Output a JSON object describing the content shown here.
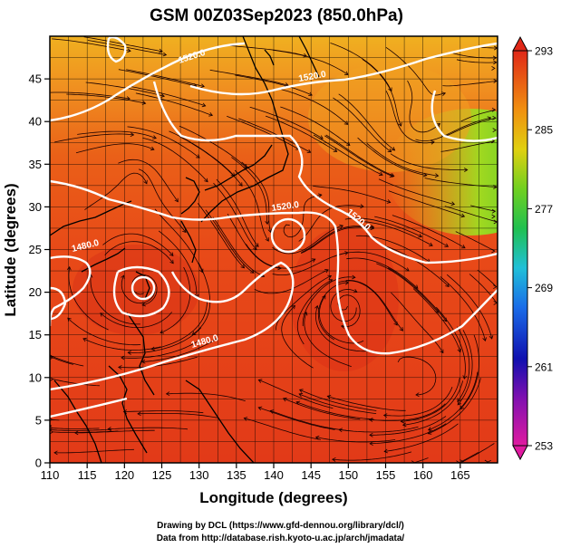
{
  "title": "GSM 00Z03Sep2023 (850.0hPa)",
  "x_axis": {
    "label": "Longitude (degrees)",
    "ticks": [
      "110",
      "115",
      "120",
      "125",
      "130",
      "135",
      "140",
      "145",
      "150",
      "155",
      "160",
      "165"
    ],
    "range": [
      110,
      170
    ]
  },
  "y_axis": {
    "label": "Latitude  (degrees)",
    "ticks": [
      "0",
      "5",
      "10",
      "15",
      "20",
      "25",
      "30",
      "35",
      "40",
      "45"
    ],
    "range": [
      0,
      50
    ]
  },
  "colorbar": {
    "ticks": [
      "253",
      "261",
      "269",
      "277",
      "285",
      "293"
    ],
    "range": [
      253,
      293
    ],
    "colors": [
      "#e01aa0",
      "#1010b0",
      "#1a8ce8",
      "#20d0c0",
      "#20c020",
      "#b0e010",
      "#f0c010",
      "#f07010",
      "#e83010",
      "#d02020"
    ]
  },
  "contours": [
    {
      "label": "1520.0"
    },
    {
      "label": "1520.0"
    },
    {
      "label": "1520.0"
    },
    {
      "label": "1520.0"
    },
    {
      "label": "1480.0"
    },
    {
      "label": "1480.0"
    }
  ],
  "credits": {
    "line1": "Drawing by DCL (https://www.gfd-dennou.org/library/dcl/)",
    "line2": "Data from http://database.rish.kyoto-u.ac.jp/arch/jmadata/"
  },
  "colors": {
    "frame": "#000000",
    "contour": "#ffffff",
    "streamline": "#1a0000",
    "coast": "#000000"
  }
}
